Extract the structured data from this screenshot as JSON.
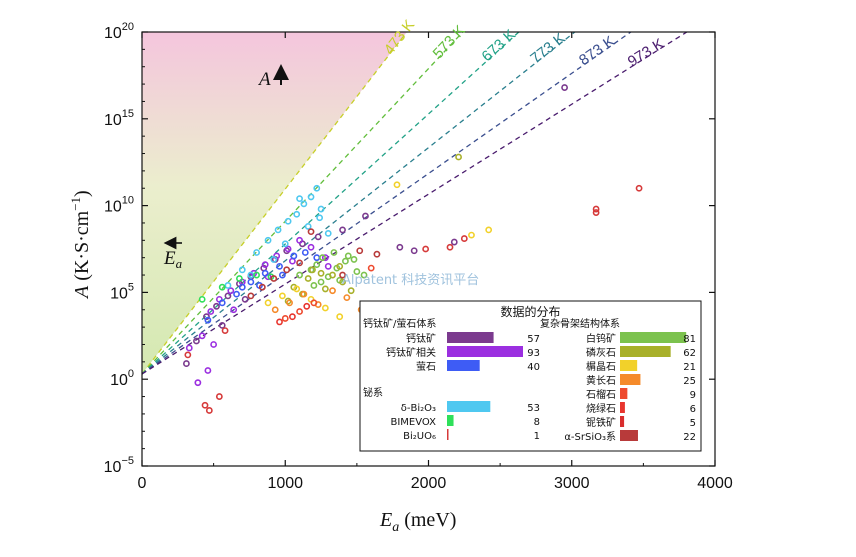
{
  "chart_data": {
    "type": "scatter",
    "title": "",
    "xlabel": "E_a (meV)",
    "ylabel": "A (K·S·cm⁻¹)",
    "xlim": [
      0,
      4000
    ],
    "ylim_log10": [
      -5,
      20
    ],
    "yscale": "log",
    "x_ticks": [
      "0",
      "1000",
      "2000",
      "3000",
      "4000"
    ],
    "y_ticks": [
      {
        "base": "10",
        "exp": "20",
        "value": 20
      },
      {
        "base": "10",
        "exp": "15",
        "value": 15
      },
      {
        "base": "10",
        "exp": "10",
        "value": 10
      },
      {
        "base": "10",
        "exp": "5",
        "value": 5
      },
      {
        "base": "10",
        "exp": "0",
        "value": 0
      },
      {
        "base": "10",
        "exp": "−5",
        "value": -5
      }
    ],
    "isotherms": [
      {
        "label": "473 K",
        "T": 473,
        "color": "#c7cf2a"
      },
      {
        "label": "573 K",
        "T": 573,
        "color": "#62be3c"
      },
      {
        "label": "673 K",
        "T": 673,
        "color": "#22a287"
      },
      {
        "label": "773 K",
        "T": 773,
        "color": "#2a7f8e"
      },
      {
        "label": "873 K",
        "T": 873,
        "color": "#3b4f8f"
      },
      {
        "label": "973 K",
        "T": 973,
        "color": "#4a1c6e"
      }
    ],
    "annotations": {
      "A_arrow": "A",
      "Ea_arrow": "E",
      "Ea_sub": "a"
    },
    "legend": {
      "title": "数据的分布",
      "position": "lower-right",
      "groups": [
        {
          "name": "钙钛矿/萤石体系",
          "column": "left",
          "items": [
            {
              "label": "钙钛矿",
              "count": 57,
              "color": "#7b3a8e"
            },
            {
              "label": "钙钛矿相关",
              "count": 93,
              "color": "#9b2fe0"
            },
            {
              "label": "萤石",
              "count": 40,
              "color": "#3e5cf5"
            }
          ]
        },
        {
          "name": "铋系",
          "column": "left",
          "items": [
            {
              "label": "δ-Bi₂O₃",
              "count": 53,
              "color": "#4fc8f0"
            },
            {
              "label": "BIMEVOX",
              "count": 8,
              "color": "#2ee05a"
            },
            {
              "label": "Bi₂UO₆",
              "count": 1,
              "color": "#d63a3a"
            }
          ]
        },
        {
          "name": "复杂骨架结构体系",
          "column": "right",
          "items": [
            {
              "label": "白钨矿",
              "count": 81,
              "color": "#7cc24e"
            },
            {
              "label": "磷灰石",
              "count": 62,
              "color": "#a8b02a"
            },
            {
              "label": "榍晶石",
              "count": 21,
              "color": "#f2d12a"
            },
            {
              "label": "黄长石",
              "count": 25,
              "color": "#f58a2a"
            },
            {
              "label": "石榴石",
              "count": 9,
              "color": "#ee4a2e"
            },
            {
              "label": "烧绿石",
              "count": 6,
              "color": "#e8352e"
            },
            {
              "label": "铌铁矿",
              "count": 5,
              "color": "#d92d2d"
            },
            {
              "label": "α-SrSiO₃系",
              "count": 22,
              "color": "#b83a3a"
            }
          ]
        }
      ]
    },
    "series": [
      {
        "color": "#7b3a8e",
        "points": [
          [
            310,
            0.9
          ],
          [
            380,
            2.2
          ],
          [
            450,
            3.6
          ],
          [
            520,
            4.2
          ],
          [
            600,
            4.8
          ],
          [
            680,
            5.5
          ],
          [
            760,
            5.9
          ],
          [
            850,
            6.4
          ],
          [
            930,
            6.9
          ],
          [
            1010,
            7.4
          ],
          [
            1120,
            7.8
          ],
          [
            1230,
            8.2
          ],
          [
            1400,
            8.6
          ],
          [
            1560,
            9.4
          ],
          [
            1800,
            7.6
          ],
          [
            1900,
            7.4
          ],
          [
            2180,
            7.9
          ],
          [
            2950,
            16.8
          ],
          [
            720,
            4.6
          ],
          [
            560,
            3.1
          ]
        ]
      },
      {
        "color": "#9b2fe0",
        "points": [
          [
            330,
            1.8
          ],
          [
            420,
            2.5
          ],
          [
            480,
            3.9
          ],
          [
            540,
            4.6
          ],
          [
            620,
            5.1
          ],
          [
            700,
            5.6
          ],
          [
            780,
            6.1
          ],
          [
            860,
            6.6
          ],
          [
            940,
            7.1
          ],
          [
            1020,
            7.5
          ],
          [
            1100,
            8.0
          ],
          [
            1180,
            7.6
          ],
          [
            1280,
            7.0
          ],
          [
            390,
            -0.2
          ],
          [
            460,
            0.5
          ],
          [
            640,
            4.0
          ],
          [
            880,
            5.9
          ],
          [
            1050,
            6.8
          ],
          [
            1300,
            6.5
          ],
          [
            500,
            2.0
          ]
        ]
      },
      {
        "color": "#3e5cf5",
        "points": [
          [
            460,
            3.4
          ],
          [
            560,
            4.4
          ],
          [
            660,
            4.9
          ],
          [
            760,
            5.6
          ],
          [
            860,
            6.1
          ],
          [
            960,
            6.5
          ],
          [
            1060,
            7.1
          ],
          [
            1140,
            7.3
          ],
          [
            1220,
            7.0
          ],
          [
            700,
            5.3
          ],
          [
            820,
            5.4
          ],
          [
            980,
            6.0
          ]
        ]
      },
      {
        "color": "#4fc8f0",
        "points": [
          [
            600,
            5.4
          ],
          [
            700,
            6.3
          ],
          [
            800,
            7.3
          ],
          [
            880,
            8.0
          ],
          [
            950,
            8.6
          ],
          [
            1020,
            9.1
          ],
          [
            1080,
            9.5
          ],
          [
            1130,
            10.1
          ],
          [
            1180,
            10.5
          ],
          [
            1220,
            11.0
          ],
          [
            1250,
            9.8
          ],
          [
            1160,
            8.8
          ],
          [
            1000,
            7.8
          ],
          [
            920,
            6.9
          ],
          [
            760,
            6.0
          ],
          [
            1300,
            8.4
          ],
          [
            1240,
            9.3
          ],
          [
            1100,
            10.4
          ]
        ]
      },
      {
        "color": "#2ee05a",
        "points": [
          [
            420,
            4.6
          ],
          [
            560,
            5.3
          ],
          [
            680,
            5.8
          ],
          [
            800,
            6.0
          ],
          [
            900,
            5.9
          ]
        ]
      },
      {
        "color": "#d63a3a",
        "points": [
          [
            440,
            -1.5
          ],
          [
            470,
            -1.8
          ],
          [
            540,
            -1.0
          ],
          [
            320,
            1.4
          ],
          [
            580,
            2.8
          ],
          [
            1980,
            7.5
          ],
          [
            3170,
            9.8
          ],
          [
            3470,
            11.0
          ],
          [
            3170,
            9.6
          ],
          [
            2250,
            8.1
          ],
          [
            2150,
            7.6
          ]
        ]
      },
      {
        "color": "#7cc24e",
        "points": [
          [
            1180,
            6.3
          ],
          [
            1260,
            7.0
          ],
          [
            1340,
            7.3
          ],
          [
            1420,
            6.8
          ],
          [
            1500,
            6.2
          ],
          [
            1300,
            5.9
          ],
          [
            1380,
            5.7
          ],
          [
            1440,
            7.1
          ],
          [
            1220,
            6.6
          ],
          [
            1550,
            6.0
          ],
          [
            1100,
            6.0
          ],
          [
            1250,
            5.6
          ],
          [
            1480,
            6.9
          ],
          [
            1360,
            6.4
          ],
          [
            1200,
            5.4
          ]
        ]
      },
      {
        "color": "#a8b02a",
        "points": [
          [
            1060,
            5.3
          ],
          [
            1160,
            5.8
          ],
          [
            1250,
            6.1
          ],
          [
            1330,
            6.0
          ],
          [
            1400,
            5.6
          ],
          [
            1460,
            5.1
          ],
          [
            1120,
            4.9
          ],
          [
            1280,
            5.2
          ],
          [
            2210,
            12.8
          ],
          [
            1020,
            4.5
          ],
          [
            1380,
            6.5
          ],
          [
            1190,
            6.3
          ]
        ]
      },
      {
        "color": "#f2d12a",
        "points": [
          [
            880,
            4.4
          ],
          [
            980,
            4.8
          ],
          [
            1080,
            5.2
          ],
          [
            1180,
            4.6
          ],
          [
            1280,
            4.1
          ],
          [
            1380,
            3.6
          ],
          [
            2300,
            8.3
          ],
          [
            2420,
            8.6
          ],
          [
            1780,
            11.2
          ]
        ]
      },
      {
        "color": "#f58a2a",
        "points": [
          [
            930,
            4.0
          ],
          [
            1030,
            4.4
          ],
          [
            1130,
            4.9
          ],
          [
            1230,
            4.3
          ],
          [
            1330,
            5.1
          ],
          [
            1430,
            4.7
          ],
          [
            1530,
            4.0
          ]
        ]
      },
      {
        "color": "#ee4a2e",
        "points": [
          [
            1000,
            3.5
          ],
          [
            1100,
            3.9
          ],
          [
            1200,
            4.4
          ],
          [
            1600,
            6.4
          ]
        ]
      },
      {
        "color": "#e8352e",
        "points": [
          [
            960,
            3.3
          ],
          [
            1050,
            3.6
          ],
          [
            1150,
            4.2
          ]
        ]
      },
      {
        "color": "#b83a3a",
        "points": [
          [
            760,
            4.8
          ],
          [
            840,
            5.3
          ],
          [
            920,
            5.8
          ],
          [
            1010,
            6.3
          ],
          [
            1100,
            6.7
          ],
          [
            1520,
            7.4
          ],
          [
            1640,
            7.2
          ],
          [
            1400,
            6.0
          ],
          [
            1180,
            8.5
          ]
        ]
      }
    ]
  },
  "watermark": "Alpatent 科技资讯平台"
}
